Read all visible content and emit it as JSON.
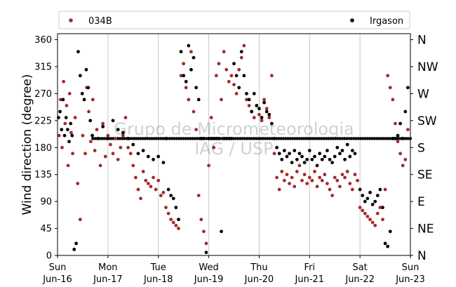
{
  "chart_data": {
    "type": "scatter",
    "ylabel": "Wind direction (degree)",
    "xlabel": "",
    "ylim": [
      0,
      370
    ],
    "yticks": [
      0,
      45,
      90,
      135,
      180,
      225,
      270,
      315,
      360
    ],
    "xlim": [
      0,
      7
    ],
    "xticks": [
      {
        "x": 0,
        "day": "Sun",
        "date": "Jun-16"
      },
      {
        "x": 1,
        "day": "Mon",
        "date": "Jun-17"
      },
      {
        "x": 2,
        "day": "Tue",
        "date": "Jun-18"
      },
      {
        "x": 3,
        "day": "Wed",
        "date": "Jun-19"
      },
      {
        "x": 4,
        "day": "Thu",
        "date": "Jun-20"
      },
      {
        "x": 5,
        "day": "Fri",
        "date": "Jun-21"
      },
      {
        "x": 6,
        "day": "Sat",
        "date": "Jun-22"
      },
      {
        "x": 7,
        "day": "Sun",
        "date": "Jun-23"
      }
    ],
    "secondary_y_labels": [
      {
        "y": 0,
        "label": "N"
      },
      {
        "y": 45,
        "label": "NE"
      },
      {
        "y": 90,
        "label": "E"
      },
      {
        "y": 135,
        "label": "SE"
      },
      {
        "y": 180,
        "label": "S"
      },
      {
        "y": 225,
        "label": "SW"
      },
      {
        "y": 270,
        "label": "W"
      },
      {
        "y": 315,
        "label": "NW"
      },
      {
        "y": 360,
        "label": "N"
      }
    ],
    "grid": "vertical",
    "legend_position": "top",
    "watermark": [
      "Grupo de Micrometeorologia",
      "IAG / USP"
    ],
    "series": [
      {
        "name": "034B",
        "color": "#a52a2a",
        "points": [
          [
            0.03,
            200
          ],
          [
            0.06,
            260
          ],
          [
            0.09,
            180
          ],
          [
            0.12,
            290
          ],
          [
            0.15,
            220
          ],
          [
            0.18,
            250
          ],
          [
            0.21,
            150
          ],
          [
            0.24,
            270
          ],
          [
            0.27,
            205
          ],
          [
            0.3,
            170
          ],
          [
            0.35,
            230
          ],
          [
            0.4,
            120
          ],
          [
            0.45,
            60
          ],
          [
            0.5,
            200
          ],
          [
            0.55,
            170
          ],
          [
            0.58,
            280
          ],
          [
            0.62,
            240
          ],
          [
            0.66,
            190
          ],
          [
            0.7,
            260
          ],
          [
            0.74,
            175
          ],
          [
            0.78,
            210
          ],
          [
            0.85,
            150
          ],
          [
            0.9,
            220
          ],
          [
            0.95,
            165
          ],
          [
            1.0,
            200
          ],
          [
            1.05,
            185
          ],
          [
            1.1,
            170
          ],
          [
            1.15,
            195
          ],
          [
            1.2,
            160
          ],
          [
            1.25,
            180
          ],
          [
            1.3,
            200
          ],
          [
            1.35,
            230
          ],
          [
            1.4,
            180
          ],
          [
            1.45,
            170
          ],
          [
            1.5,
            150
          ],
          [
            1.55,
            130
          ],
          [
            1.6,
            110
          ],
          [
            1.65,
            95
          ],
          [
            1.7,
            140
          ],
          [
            1.75,
            125
          ],
          [
            1.8,
            120
          ],
          [
            1.85,
            115
          ],
          [
            1.9,
            130
          ],
          [
            1.95,
            110
          ],
          [
            2.0,
            125
          ],
          [
            2.05,
            100
          ],
          [
            2.1,
            105
          ],
          [
            2.15,
            80
          ],
          [
            2.2,
            70
          ],
          [
            2.25,
            60
          ],
          [
            2.3,
            55
          ],
          [
            2.35,
            50
          ],
          [
            2.4,
            45
          ],
          [
            2.45,
            300
          ],
          [
            2.5,
            320
          ],
          [
            2.55,
            280
          ],
          [
            2.6,
            260
          ],
          [
            2.65,
            340
          ],
          [
            2.7,
            240
          ],
          [
            2.75,
            210
          ],
          [
            2.8,
            100
          ],
          [
            2.85,
            60
          ],
          [
            2.9,
            40
          ],
          [
            2.95,
            20
          ],
          [
            3.0,
            150
          ],
          [
            3.05,
            230
          ],
          [
            3.1,
            180
          ],
          [
            3.15,
            300
          ],
          [
            3.2,
            320
          ],
          [
            3.25,
            260
          ],
          [
            3.3,
            340
          ],
          [
            3.35,
            310
          ],
          [
            3.4,
            290
          ],
          [
            3.45,
            300
          ],
          [
            3.5,
            285
          ],
          [
            3.55,
            270
          ],
          [
            3.6,
            310
          ],
          [
            3.65,
            330
          ],
          [
            3.7,
            350
          ],
          [
            3.75,
            260
          ],
          [
            3.8,
            250
          ],
          [
            3.85,
            240
          ],
          [
            3.9,
            230
          ],
          [
            3.95,
            250
          ],
          [
            4.0,
            235
          ],
          [
            4.05,
            225
          ],
          [
            4.1,
            260
          ],
          [
            4.15,
            245
          ],
          [
            4.2,
            230
          ],
          [
            4.25,
            300
          ],
          [
            4.3,
            170
          ],
          [
            4.35,
            130
          ],
          [
            4.4,
            110
          ],
          [
            4.45,
            140
          ],
          [
            4.5,
            125
          ],
          [
            4.55,
            135
          ],
          [
            4.6,
            120
          ],
          [
            4.65,
            130
          ],
          [
            4.7,
            115
          ],
          [
            4.75,
            140
          ],
          [
            4.8,
            150
          ],
          [
            4.85,
            125
          ],
          [
            4.9,
            135
          ],
          [
            4.95,
            120
          ],
          [
            5.0,
            130
          ],
          [
            5.05,
            125
          ],
          [
            5.1,
            140
          ],
          [
            5.15,
            115
          ],
          [
            5.2,
            130
          ],
          [
            5.25,
            125
          ],
          [
            5.3,
            135
          ],
          [
            5.35,
            120
          ],
          [
            5.4,
            110
          ],
          [
            5.45,
            100
          ],
          [
            5.5,
            130
          ],
          [
            5.55,
            125
          ],
          [
            5.6,
            115
          ],
          [
            5.65,
            135
          ],
          [
            5.7,
            130
          ],
          [
            5.75,
            140
          ],
          [
            5.8,
            120
          ],
          [
            5.85,
            110
          ],
          [
            5.9,
            135
          ],
          [
            5.95,
            125
          ],
          [
            6.0,
            80
          ],
          [
            6.05,
            75
          ],
          [
            6.1,
            70
          ],
          [
            6.15,
            65
          ],
          [
            6.2,
            60
          ],
          [
            6.25,
            55
          ],
          [
            6.3,
            50
          ],
          [
            6.35,
            70
          ],
          [
            6.4,
            80
          ],
          [
            6.45,
            60
          ],
          [
            6.5,
            110
          ],
          [
            6.55,
            300
          ],
          [
            6.6,
            280
          ],
          [
            6.65,
            260
          ],
          [
            6.7,
            220
          ],
          [
            6.75,
            190
          ],
          [
            6.8,
            170
          ],
          [
            6.85,
            150
          ],
          [
            6.9,
            160
          ],
          [
            6.95,
            210
          ]
        ]
      },
      {
        "name": "Irgason",
        "color": "#000000",
        "points": [
          [
            0.02,
            230
          ],
          [
            0.05,
            240
          ],
          [
            0.08,
            210
          ],
          [
            0.11,
            260
          ],
          [
            0.14,
            200
          ],
          [
            0.17,
            230
          ],
          [
            0.2,
            210
          ],
          [
            0.23,
            190
          ],
          [
            0.26,
            220
          ],
          [
            0.29,
            200
          ],
          [
            0.33,
            10
          ],
          [
            0.37,
            20
          ],
          [
            0.41,
            340
          ],
          [
            0.45,
            300
          ],
          [
            0.49,
            270
          ],
          [
            0.53,
            260
          ],
          [
            0.57,
            310
          ],
          [
            0.61,
            280
          ],
          [
            0.65,
            225
          ],
          [
            0.69,
            200
          ],
          [
            0.8,
            195
          ],
          [
            0.9,
            215
          ],
          [
            1.0,
            195
          ],
          [
            1.1,
            225
          ],
          [
            1.2,
            210
          ],
          [
            1.3,
            205
          ],
          [
            1.4,
            195
          ],
          [
            1.5,
            185
          ],
          [
            1.6,
            170
          ],
          [
            1.7,
            175
          ],
          [
            1.8,
            165
          ],
          [
            1.9,
            160
          ],
          [
            2.0,
            165
          ],
          [
            2.1,
            155
          ],
          [
            2.15,
            195
          ],
          [
            2.2,
            110
          ],
          [
            2.25,
            100
          ],
          [
            2.3,
            95
          ],
          [
            2.35,
            80
          ],
          [
            2.4,
            60
          ],
          [
            2.45,
            340
          ],
          [
            2.5,
            300
          ],
          [
            2.55,
            290
          ],
          [
            2.6,
            350
          ],
          [
            2.65,
            310
          ],
          [
            2.7,
            330
          ],
          [
            2.75,
            280
          ],
          [
            2.8,
            260
          ],
          [
            2.85,
            195
          ],
          [
            2.9,
            195
          ],
          [
            2.95,
            5
          ],
          [
            3.0,
            195
          ],
          [
            3.05,
            195
          ],
          [
            3.1,
            195
          ],
          [
            3.15,
            195
          ],
          [
            3.2,
            195
          ],
          [
            3.25,
            40
          ],
          [
            3.3,
            195
          ],
          [
            3.35,
            195
          ],
          [
            3.4,
            195
          ],
          [
            3.45,
            195
          ],
          [
            3.5,
            320
          ],
          [
            3.55,
            300
          ],
          [
            3.6,
            280
          ],
          [
            3.65,
            340
          ],
          [
            3.7,
            300
          ],
          [
            3.75,
            270
          ],
          [
            3.8,
            260
          ],
          [
            3.85,
            240
          ],
          [
            3.9,
            270
          ],
          [
            3.95,
            250
          ],
          [
            4.0,
            245
          ],
          [
            4.05,
            230
          ],
          [
            4.1,
            255
          ],
          [
            4.15,
            240
          ],
          [
            4.2,
            235
          ],
          [
            4.25,
            220
          ],
          [
            4.3,
            195
          ],
          [
            4.35,
            180
          ],
          [
            4.4,
            170
          ],
          [
            4.45,
            160
          ],
          [
            4.5,
            175
          ],
          [
            4.55,
            165
          ],
          [
            4.6,
            170
          ],
          [
            4.65,
            155
          ],
          [
            4.7,
            175
          ],
          [
            4.75,
            160
          ],
          [
            4.8,
            170
          ],
          [
            4.85,
            165
          ],
          [
            4.9,
            155
          ],
          [
            4.95,
            160
          ],
          [
            5.0,
            175
          ],
          [
            5.05,
            160
          ],
          [
            5.1,
            165
          ],
          [
            5.15,
            150
          ],
          [
            5.2,
            170
          ],
          [
            5.25,
            160
          ],
          [
            5.3,
            165
          ],
          [
            5.35,
            175
          ],
          [
            5.4,
            160
          ],
          [
            5.45,
            155
          ],
          [
            5.5,
            165
          ],
          [
            5.55,
            180
          ],
          [
            5.6,
            170
          ],
          [
            5.65,
            175
          ],
          [
            5.7,
            160
          ],
          [
            5.75,
            185
          ],
          [
            5.8,
            165
          ],
          [
            5.85,
            175
          ],
          [
            5.9,
            170
          ],
          [
            6.0,
            110
          ],
          [
            6.05,
            100
          ],
          [
            6.1,
            90
          ],
          [
            6.15,
            95
          ],
          [
            6.2,
            105
          ],
          [
            6.25,
            85
          ],
          [
            6.3,
            90
          ],
          [
            6.35,
            100
          ],
          [
            6.4,
            110
          ],
          [
            6.45,
            80
          ],
          [
            6.5,
            20
          ],
          [
            6.55,
            15
          ],
          [
            6.6,
            40
          ],
          [
            6.65,
            195
          ],
          [
            6.7,
            195
          ],
          [
            6.75,
            200
          ],
          [
            6.8,
            220
          ],
          [
            6.85,
            195
          ],
          [
            6.9,
            240
          ],
          [
            6.95,
            280
          ]
        ]
      }
    ]
  }
}
